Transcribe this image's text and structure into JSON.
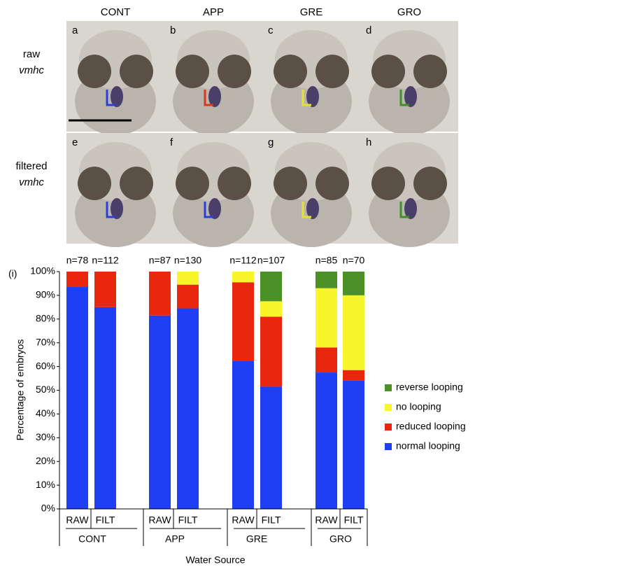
{
  "panels": {
    "columns": [
      "CONT",
      "APP",
      "GRE",
      "GRO"
    ],
    "rows": [
      {
        "label": "raw",
        "gene": "vmhc"
      },
      {
        "label": "filtered",
        "gene": "vmhc"
      }
    ],
    "letters": [
      "a",
      "b",
      "c",
      "d",
      "e",
      "f",
      "g",
      "h"
    ]
  },
  "chart_data": {
    "type": "bar",
    "stacked": true,
    "panel_label": "(i)",
    "x_label": "Water Source",
    "y_label": "Percentage of embryos",
    "categories": [
      "RAW",
      "FILT",
      "RAW",
      "FILT",
      "RAW",
      "FILT",
      "RAW",
      "FILT"
    ],
    "groups": [
      "CONT",
      "APP",
      "GRE",
      "GRO"
    ],
    "bar_labels": [
      "n=78",
      "n=112",
      "n=87",
      "n=130",
      "n=112",
      "n=107",
      "n=85",
      "n=70"
    ],
    "series": [
      {
        "name": "normal looping",
        "color": "#1f3ff5",
        "values": [
          93.5,
          85,
          81.5,
          84.5,
          62.5,
          51.5,
          57.5,
          54
        ]
      },
      {
        "name": "reduced looping",
        "color": "#e8270e",
        "values": [
          6.5,
          15,
          18.5,
          10,
          33,
          29.5,
          10.5,
          4.5
        ]
      },
      {
        "name": "no looping",
        "color": "#f8f52a",
        "values": [
          0,
          0,
          0,
          5.5,
          4.5,
          6.5,
          25,
          31.5
        ]
      },
      {
        "name": "reverse looping",
        "color": "#4b9128",
        "values": [
          0,
          0,
          0,
          0,
          0,
          12.5,
          7,
          10
        ]
      }
    ],
    "ylim": [
      0,
      100
    ],
    "yticks": [
      {
        "value": 0,
        "label": "0%"
      },
      {
        "value": 10,
        "label": "10%"
      },
      {
        "value": 20,
        "label": "20%"
      },
      {
        "value": 30,
        "label": "30%"
      },
      {
        "value": 40,
        "label": "40%"
      },
      {
        "value": 50,
        "label": "50%"
      },
      {
        "value": 60,
        "label": "60%"
      },
      {
        "value": 70,
        "label": "70%"
      },
      {
        "value": 80,
        "label": "80%"
      },
      {
        "value": 90,
        "label": "90%"
      },
      {
        "value": 100,
        "label": "100%"
      }
    ],
    "legend": "right"
  }
}
